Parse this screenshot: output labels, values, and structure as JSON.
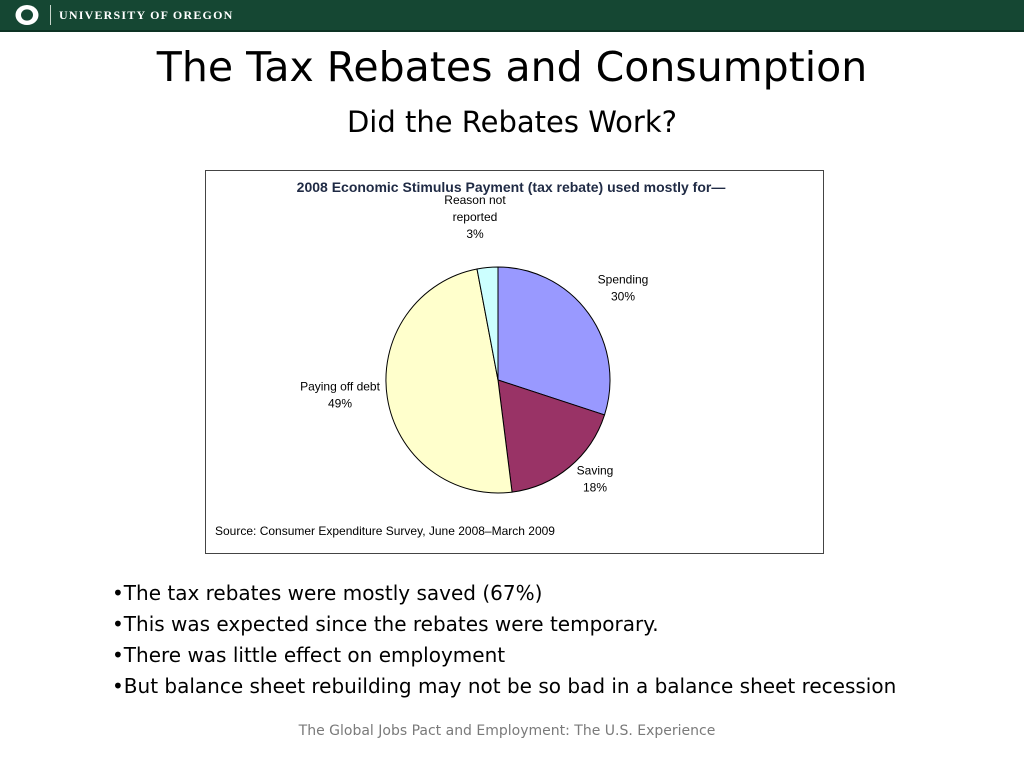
{
  "header": {
    "university_name": "UNIVERSITY OF OREGON",
    "logo_icon": "oregon-o-logo-icon",
    "brand_color": "#154733"
  },
  "slide": {
    "title": "The Tax Rebates and Consumption",
    "subtitle": "Did the Rebates Work?",
    "bullets": [
      "The tax rebates were mostly saved (67%)",
      "This was expected since the rebates were temporary.",
      "There was little effect on employment",
      "But balance sheet rebuilding may not be so bad in a balance sheet recession"
    ],
    "footer": "The Global Jobs Pact and Employment: The U.S. Experience"
  },
  "chart_data": {
    "type": "pie",
    "title": "2008 Economic Stimulus Payment (tax rebate) used mostly for—",
    "source": "Source:  Consumer Expenditure Survey, June 2008–March 2009",
    "categories": [
      "Spending",
      "Saving",
      "Paying off debt",
      "Reason not reported"
    ],
    "values": [
      30,
      18,
      49,
      3
    ],
    "value_labels": [
      "30%",
      "18%",
      "49%",
      "3%"
    ],
    "colors": [
      "#9999ff",
      "#993366",
      "#ffffcc",
      "#ccffff"
    ],
    "start_angle": "12 o'clock",
    "direction": "clockwise",
    "legend": "none"
  }
}
